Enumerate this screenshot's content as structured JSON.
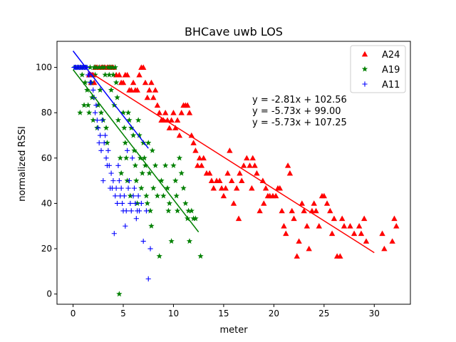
{
  "chart_data": {
    "type": "scatter",
    "title": "BHCave uwb LOS",
    "xlabel": "meter",
    "ylabel": "normalized RSSI",
    "xlim": [
      -1.6,
      33.6
    ],
    "ylim": [
      -4.5,
      111.5
    ],
    "xticks": [
      0,
      5,
      10,
      15,
      20,
      25,
      30
    ],
    "yticks": [
      0,
      20,
      40,
      60,
      80,
      100
    ],
    "grid": false,
    "legend_position": "top-right",
    "series": [
      {
        "name": "A24",
        "marker": "triangle",
        "color": "#ff0000",
        "fit": {
          "equation": "y = -2.81x + 102.56",
          "slope": -2.81,
          "intercept": 102.56,
          "x_range": [
            1.5,
            30
          ]
        },
        "points": [
          [
            1.6,
            96.7
          ],
          [
            1.8,
            93.3
          ],
          [
            2.0,
            96.7
          ],
          [
            2.1,
            93.3
          ],
          [
            2.2,
            100
          ],
          [
            2.4,
            100
          ],
          [
            2.6,
            100
          ],
          [
            2.8,
            100
          ],
          [
            3.0,
            100
          ],
          [
            3.2,
            100
          ],
          [
            3.4,
            100
          ],
          [
            3.6,
            100
          ],
          [
            3.8,
            100
          ],
          [
            4.0,
            100
          ],
          [
            4.3,
            96.7
          ],
          [
            4.6,
            96.7
          ],
          [
            4.8,
            93.3
          ],
          [
            5.0,
            93.3
          ],
          [
            5.2,
            96.7
          ],
          [
            5.4,
            96.7
          ],
          [
            5.6,
            90
          ],
          [
            5.8,
            90
          ],
          [
            6.0,
            93.3
          ],
          [
            6.2,
            90
          ],
          [
            6.4,
            90
          ],
          [
            6.6,
            96.7
          ],
          [
            6.8,
            100
          ],
          [
            7.0,
            100
          ],
          [
            7.2,
            93.3
          ],
          [
            7.4,
            86.7
          ],
          [
            7.6,
            90
          ],
          [
            7.8,
            93.3
          ],
          [
            8.0,
            86.7
          ],
          [
            8.2,
            90
          ],
          [
            8.4,
            83.3
          ],
          [
            8.6,
            80
          ],
          [
            8.8,
            76.7
          ],
          [
            9.0,
            76.7
          ],
          [
            9.2,
            80
          ],
          [
            9.4,
            76.7
          ],
          [
            9.6,
            73.3
          ],
          [
            9.8,
            76.7
          ],
          [
            10.0,
            80
          ],
          [
            10.2,
            73.3
          ],
          [
            10.4,
            76.7
          ],
          [
            10.6,
            70
          ],
          [
            10.8,
            80
          ],
          [
            11.0,
            83.3
          ],
          [
            11.2,
            83.3
          ],
          [
            11.4,
            83.3
          ],
          [
            11.6,
            80
          ],
          [
            11.8,
            70
          ],
          [
            12.0,
            66.7
          ],
          [
            12.2,
            63.3
          ],
          [
            12.4,
            56.7
          ],
          [
            12.6,
            60
          ],
          [
            12.8,
            56.7
          ],
          [
            13.0,
            60
          ],
          [
            13.3,
            53.3
          ],
          [
            13.6,
            53.3
          ],
          [
            13.8,
            50
          ],
          [
            14.0,
            46.7
          ],
          [
            14.3,
            50
          ],
          [
            14.6,
            50
          ],
          [
            14.8,
            46.7
          ],
          [
            15.0,
            43.3
          ],
          [
            15.2,
            46.7
          ],
          [
            15.4,
            53.3
          ],
          [
            15.6,
            63.3
          ],
          [
            15.8,
            50
          ],
          [
            16.0,
            40
          ],
          [
            16.3,
            46.7
          ],
          [
            16.6,
            53.3
          ],
          [
            16.8,
            50
          ],
          [
            17.0,
            56.7
          ],
          [
            17.3,
            60
          ],
          [
            17.6,
            56.7
          ],
          [
            17.9,
            60
          ],
          [
            18.1,
            56.7
          ],
          [
            18.3,
            53.3
          ],
          [
            18.6,
            36.7
          ],
          [
            18.9,
            50
          ],
          [
            19.2,
            46.7
          ],
          [
            19.4,
            43.3
          ],
          [
            19.6,
            43.3
          ],
          [
            19.9,
            43.3
          ],
          [
            20.2,
            43.3
          ],
          [
            20.4,
            46.7
          ],
          [
            20.6,
            46.7
          ],
          [
            20.8,
            36.7
          ],
          [
            21.0,
            30
          ],
          [
            21.2,
            26.7
          ],
          [
            21.4,
            56.7
          ],
          [
            21.6,
            53.3
          ],
          [
            21.8,
            36.7
          ],
          [
            22.0,
            33.3
          ],
          [
            22.3,
            16.7
          ],
          [
            22.5,
            23.3
          ],
          [
            22.8,
            40
          ],
          [
            23.0,
            36.7
          ],
          [
            23.3,
            30
          ],
          [
            23.5,
            20
          ],
          [
            23.8,
            36.7
          ],
          [
            24.0,
            40
          ],
          [
            24.2,
            36.7
          ],
          [
            24.5,
            30
          ],
          [
            24.8,
            43.3
          ],
          [
            25.0,
            43.3
          ],
          [
            25.3,
            40
          ],
          [
            25.6,
            36.7
          ],
          [
            25.8,
            26.7
          ],
          [
            26.0,
            33.3
          ],
          [
            26.3,
            16.7
          ],
          [
            26.6,
            16.7
          ],
          [
            26.8,
            33.3
          ],
          [
            27.0,
            30
          ],
          [
            28.0,
            26.7
          ],
          [
            28.5,
            30
          ],
          [
            28.7,
            26.7
          ],
          [
            29.0,
            33.3
          ],
          [
            29.2,
            23.3
          ],
          [
            30.8,
            26.7
          ],
          [
            31.0,
            20
          ],
          [
            31.8,
            23.3
          ],
          [
            32.0,
            33.3
          ],
          [
            32.2,
            30
          ],
          [
            27.6,
            30
          ],
          [
            19.0,
            40
          ],
          [
            17.8,
            46.7
          ],
          [
            16.5,
            33.3
          ]
        ]
      },
      {
        "name": "A19",
        "marker": "star",
        "color": "#008000",
        "fit": {
          "equation": "y = -5.73x + 99.00",
          "slope": -5.73,
          "intercept": 99.0,
          "x_range": [
            0,
            12.5
          ]
        },
        "points": [
          [
            0.2,
            100
          ],
          [
            0.5,
            100
          ],
          [
            0.7,
            80
          ],
          [
            0.8,
            100
          ],
          [
            0.9,
            96.7
          ],
          [
            1.0,
            100
          ],
          [
            1.1,
            83.3
          ],
          [
            1.2,
            93.3
          ],
          [
            1.3,
            100
          ],
          [
            1.4,
            90
          ],
          [
            1.5,
            83.3
          ],
          [
            1.6,
            80
          ],
          [
            1.7,
            100
          ],
          [
            1.8,
            93.3
          ],
          [
            1.9,
            86.7
          ],
          [
            2.0,
            76.7
          ],
          [
            2.1,
            100
          ],
          [
            2.2,
            96.7
          ],
          [
            2.3,
            100
          ],
          [
            2.4,
            73.3
          ],
          [
            2.5,
            83.3
          ],
          [
            2.6,
            100
          ],
          [
            2.7,
            90
          ],
          [
            2.8,
            80
          ],
          [
            2.9,
            100
          ],
          [
            3.0,
            76.7
          ],
          [
            3.1,
            100
          ],
          [
            3.2,
            96.7
          ],
          [
            3.3,
            73.3
          ],
          [
            3.4,
            66.7
          ],
          [
            3.5,
            100
          ],
          [
            3.6,
            96.7
          ],
          [
            3.7,
            100
          ],
          [
            3.8,
            90
          ],
          [
            3.9,
            100
          ],
          [
            4.0,
            96.7
          ],
          [
            4.1,
            83.3
          ],
          [
            4.2,
            100
          ],
          [
            4.3,
            93.3
          ],
          [
            4.4,
            86.7
          ],
          [
            4.5,
            76.7
          ],
          [
            4.6,
            0
          ],
          [
            4.7,
            60
          ],
          [
            4.8,
            53.3
          ],
          [
            5.0,
            80
          ],
          [
            5.1,
            73.3
          ],
          [
            5.2,
            66.7
          ],
          [
            5.3,
            60
          ],
          [
            5.4,
            50
          ],
          [
            5.5,
            80
          ],
          [
            5.6,
            76.7
          ],
          [
            5.7,
            43.3
          ],
          [
            5.8,
            73.3
          ],
          [
            6.0,
            70
          ],
          [
            6.1,
            63.3
          ],
          [
            6.2,
            56.7
          ],
          [
            6.3,
            50
          ],
          [
            6.4,
            40
          ],
          [
            6.5,
            76.7
          ],
          [
            6.6,
            70
          ],
          [
            6.7,
            60
          ],
          [
            6.8,
            46.7
          ],
          [
            6.9,
            53.3
          ],
          [
            7.0,
            66.7
          ],
          [
            7.1,
            60
          ],
          [
            7.2,
            56.7
          ],
          [
            7.3,
            43.3
          ],
          [
            7.4,
            40
          ],
          [
            7.5,
            66.7
          ],
          [
            7.6,
            53.3
          ],
          [
            7.7,
            36.7
          ],
          [
            7.8,
            30
          ],
          [
            7.9,
            63.3
          ],
          [
            8.0,
            46.7
          ],
          [
            8.2,
            56.7
          ],
          [
            8.4,
            43.3
          ],
          [
            8.6,
            16.7
          ],
          [
            8.8,
            50
          ],
          [
            9.0,
            43.3
          ],
          [
            9.2,
            56.7
          ],
          [
            9.4,
            46.7
          ],
          [
            9.6,
            40
          ],
          [
            9.8,
            23.3
          ],
          [
            10.0,
            56.7
          ],
          [
            10.2,
            50
          ],
          [
            10.4,
            36.7
          ],
          [
            10.6,
            60
          ],
          [
            10.8,
            53.3
          ],
          [
            11.0,
            46.7
          ],
          [
            11.2,
            40
          ],
          [
            11.4,
            33.3
          ],
          [
            11.6,
            23.3
          ],
          [
            11.8,
            36.7
          ],
          [
            12.0,
            33.3
          ],
          [
            12.2,
            33.3
          ],
          [
            12.7,
            16.7
          ],
          [
            9.5,
            36.7
          ],
          [
            10.3,
            43.3
          ],
          [
            11.5,
            36.7
          ]
        ]
      },
      {
        "name": "A11",
        "marker": "plus",
        "color": "#0000ff",
        "fit": {
          "equation": "y = -5.73x + 107.25",
          "slope": -5.73,
          "intercept": 107.25,
          "x_range": [
            0,
            7.5
          ]
        },
        "points": [
          [
            0.1,
            100
          ],
          [
            0.2,
            100
          ],
          [
            0.3,
            100
          ],
          [
            0.4,
            100
          ],
          [
            0.5,
            100
          ],
          [
            0.6,
            100
          ],
          [
            0.7,
            100
          ],
          [
            0.8,
            100
          ],
          [
            0.9,
            100
          ],
          [
            1.0,
            100
          ],
          [
            1.1,
            100
          ],
          [
            1.2,
            100
          ],
          [
            1.3,
            100
          ],
          [
            1.4,
            100
          ],
          [
            1.5,
            96.7
          ],
          [
            1.6,
            96.7
          ],
          [
            1.7,
            93.3
          ],
          [
            1.8,
            93.3
          ],
          [
            1.9,
            96.7
          ],
          [
            2.0,
            90
          ],
          [
            2.1,
            86.7
          ],
          [
            2.2,
            80
          ],
          [
            2.3,
            83.3
          ],
          [
            2.4,
            76.7
          ],
          [
            2.5,
            73.3
          ],
          [
            2.6,
            66.7
          ],
          [
            2.7,
            70
          ],
          [
            2.8,
            63.3
          ],
          [
            2.9,
            76.7
          ],
          [
            3.0,
            50
          ],
          [
            3.1,
            66.7
          ],
          [
            3.2,
            70
          ],
          [
            3.3,
            60
          ],
          [
            3.4,
            56.7
          ],
          [
            3.5,
            63.3
          ],
          [
            3.6,
            56.7
          ],
          [
            3.7,
            46.7
          ],
          [
            3.8,
            53.3
          ],
          [
            3.9,
            46.7
          ],
          [
            4.0,
            50
          ],
          [
            4.1,
            26.7
          ],
          [
            4.2,
            43.3
          ],
          [
            4.3,
            46.7
          ],
          [
            4.4,
            40
          ],
          [
            4.5,
            56.7
          ],
          [
            4.6,
            50
          ],
          [
            4.7,
            43.3
          ],
          [
            4.8,
            46.7
          ],
          [
            4.9,
            40
          ],
          [
            5.0,
            36.7
          ],
          [
            5.1,
            43.3
          ],
          [
            5.2,
            30
          ],
          [
            5.3,
            36.7
          ],
          [
            5.4,
            63.3
          ],
          [
            5.5,
            46.7
          ],
          [
            5.6,
            50
          ],
          [
            5.7,
            40
          ],
          [
            5.8,
            36.7
          ],
          [
            5.9,
            60
          ],
          [
            6.0,
            43.3
          ],
          [
            6.1,
            46.7
          ],
          [
            6.2,
            40
          ],
          [
            6.3,
            33.3
          ],
          [
            6.4,
            36.7
          ],
          [
            6.5,
            43.3
          ],
          [
            6.6,
            36.7
          ],
          [
            6.8,
            40
          ],
          [
            7.0,
            23.3
          ],
          [
            7.3,
            36.7
          ],
          [
            7.5,
            6.7
          ],
          [
            7.7,
            20
          ]
        ]
      }
    ]
  }
}
